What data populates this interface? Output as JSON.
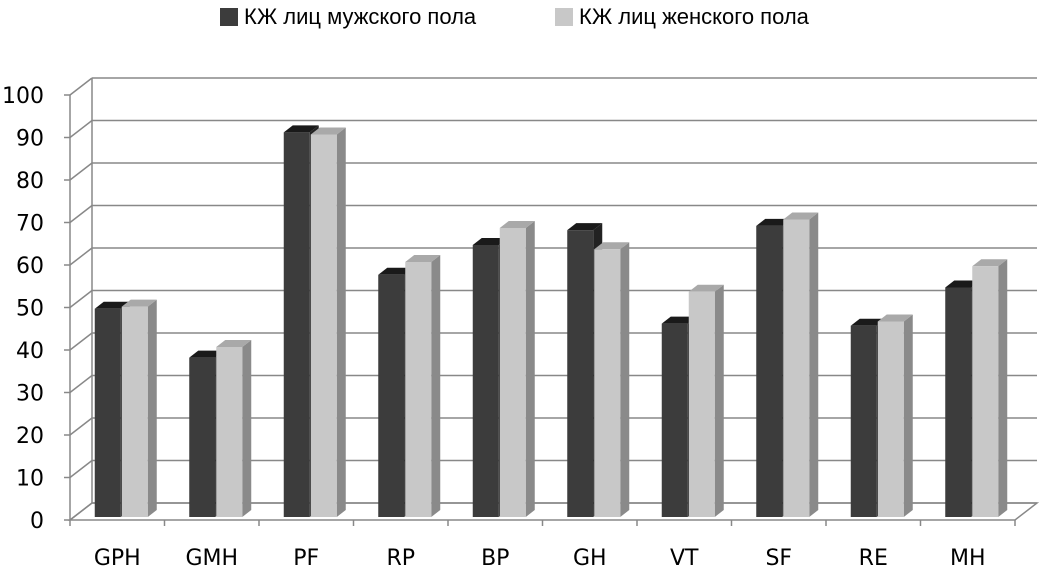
{
  "chart_data": {
    "type": "bar",
    "title": "",
    "xlabel": "",
    "ylabel": "",
    "ylim": [
      0,
      100
    ],
    "yticks": [
      0,
      10,
      20,
      30,
      40,
      50,
      60,
      70,
      80,
      90,
      100
    ],
    "categories": [
      "GPH",
      "GMH",
      "PF",
      "RP",
      "BP",
      "GH",
      "VT",
      "SF",
      "RE",
      "MH"
    ],
    "series": [
      {
        "name": "КЖ лиц мужского пола",
        "color": "#3c3c3c",
        "values": [
          49,
          37.5,
          90.5,
          57,
          64,
          67.5,
          45.5,
          68.5,
          45,
          54
        ]
      },
      {
        "name": "КЖ лиц женского пола",
        "color": "#c8c8c8",
        "values": [
          49.5,
          40,
          90,
          60,
          68,
          63,
          53,
          70,
          46,
          59
        ]
      }
    ],
    "grid": true,
    "legend_position": "top",
    "style": "3d-clustered-column"
  }
}
